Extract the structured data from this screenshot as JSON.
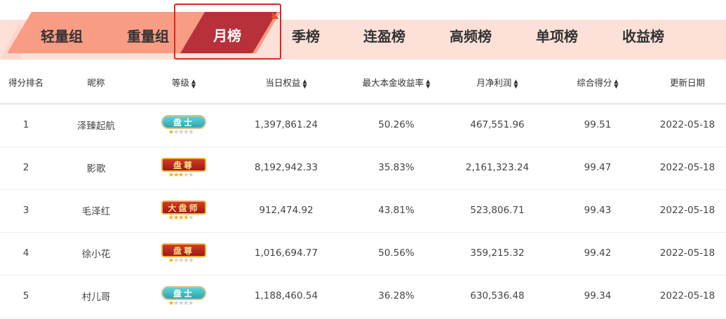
{
  "tabs": [
    {
      "label": "轻量组",
      "active": false
    },
    {
      "label": "重量组",
      "active": false
    },
    {
      "label": "月榜",
      "active": true
    },
    {
      "label": "季榜",
      "active": false
    },
    {
      "label": "连盈榜",
      "active": false
    },
    {
      "label": "高频榜",
      "active": false
    },
    {
      "label": "单项榜",
      "active": false
    },
    {
      "label": "收益榜",
      "active": false
    }
  ],
  "colors": {
    "active_tab": "#b8303a",
    "group_tabs": "#f99c84",
    "band": "#fde1d9",
    "highlight_box": "#e0261e",
    "star": "#f4a81c"
  },
  "table": {
    "headers": [
      {
        "label": "得分排名",
        "sortable": false
      },
      {
        "label": "昵称",
        "sortable": false
      },
      {
        "label": "等级",
        "sortable": true
      },
      {
        "label": "当日权益",
        "sortable": true
      },
      {
        "label": "最大本金收益率",
        "sortable": true
      },
      {
        "label": "月净利润",
        "sortable": true
      },
      {
        "label": "综合得分",
        "sortable": true
      },
      {
        "label": "更新日期",
        "sortable": false
      }
    ],
    "rows": [
      {
        "rank": "1",
        "name": "泽臻起航",
        "level": "盘士",
        "level_style": "teal",
        "stars": 1,
        "equity": "1,397,861.24",
        "max_return": "50.26%",
        "monthly_profit": "467,551.96",
        "score": "99.51",
        "date": "2022-05-18"
      },
      {
        "rank": "2",
        "name": "影歌",
        "level": "盘尊",
        "level_style": "red",
        "stars": 3,
        "equity": "8,192,942.33",
        "max_return": "35.83%",
        "monthly_profit": "2,161,323.24",
        "score": "99.47",
        "date": "2022-05-18"
      },
      {
        "rank": "3",
        "name": "毛泽红",
        "level": "大盘师",
        "level_style": "red",
        "stars": 4,
        "equity": "912,474.92",
        "max_return": "43.81%",
        "monthly_profit": "523,806.71",
        "score": "99.43",
        "date": "2022-05-18"
      },
      {
        "rank": "4",
        "name": "徐小花",
        "level": "盘尊",
        "level_style": "red",
        "stars": 1,
        "equity": "1,016,694.77",
        "max_return": "50.56%",
        "monthly_profit": "359,215.32",
        "score": "99.42",
        "date": "2022-05-18"
      },
      {
        "rank": "5",
        "name": "村儿哥",
        "level": "盘士",
        "level_style": "teal",
        "stars": 1,
        "equity": "1,188,460.54",
        "max_return": "36.28%",
        "monthly_profit": "630,536.48",
        "score": "99.34",
        "date": "2022-05-18"
      }
    ]
  }
}
